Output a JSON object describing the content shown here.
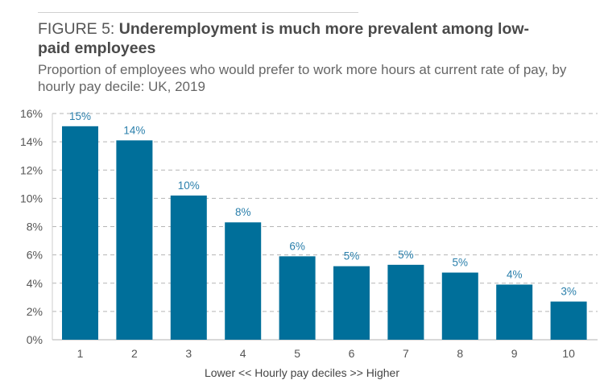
{
  "chart_data": {
    "type": "bar",
    "figure_label": "FIGURE 5: ",
    "title": "Underemployment is much more prevalent among low-paid employees",
    "subtitle": "Proportion of employees who would prefer to work more hours at current rate of pay, by hourly pay decile: UK, 2019",
    "categories": [
      "1",
      "2",
      "3",
      "4",
      "5",
      "6",
      "7",
      "8",
      "9",
      "10"
    ],
    "values": [
      15.1,
      14.1,
      10.2,
      8.3,
      5.9,
      5.2,
      5.3,
      4.75,
      3.9,
      2.7
    ],
    "data_labels": [
      "15%",
      "14%",
      "10%",
      "8%",
      "6%",
      "5%",
      "5%",
      "5%",
      "4%",
      "3%"
    ],
    "xlabel": "Lower << Hourly pay deciles >> Higher",
    "ylabel": "",
    "ylim": [
      0,
      16
    ],
    "yticks": [
      0,
      2,
      4,
      6,
      8,
      10,
      12,
      14,
      16
    ],
    "ytick_labels": [
      "0%",
      "2%",
      "4%",
      "6%",
      "8%",
      "10%",
      "12%",
      "14%",
      "16%"
    ],
    "grid": true,
    "colors": {
      "bar": "#006f9a",
      "label": "#2a7fab",
      "grid": "#b5b5b5",
      "axis": "#cccccc",
      "text": "#555555"
    }
  }
}
